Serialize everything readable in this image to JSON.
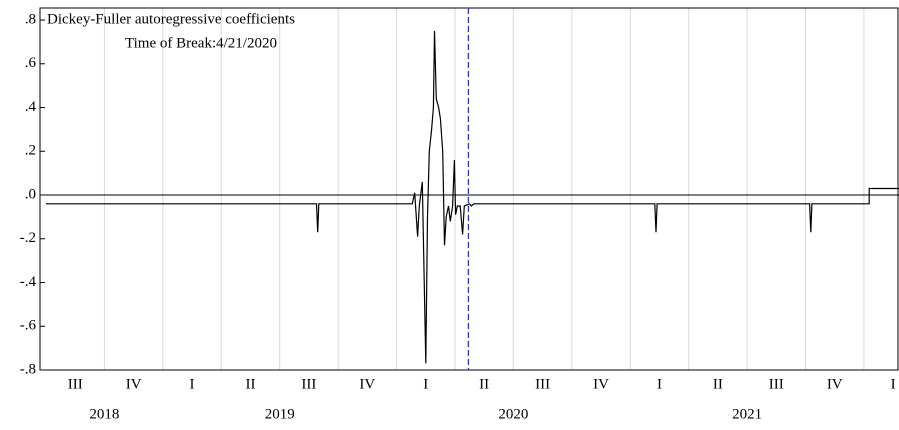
{
  "chart_data": {
    "type": "line",
    "annotations": [
      "Dickey-Fuller autoregressive coefficients",
      "Time of Break:4/21/2020"
    ],
    "xlim": [
      0,
      14.6
    ],
    "ylim": [
      -0.8,
      0.855
    ],
    "yticks": [
      {
        "value": 0.8,
        "label": ".8"
      },
      {
        "value": 0.6,
        "label": ".6"
      },
      {
        "value": 0.4,
        "label": ".4"
      },
      {
        "value": 0.2,
        "label": ".2"
      },
      {
        "value": 0,
        "label": ".0"
      },
      {
        "value": -0.2,
        "label": "-.2"
      },
      {
        "value": -0.4,
        "label": "-.4"
      },
      {
        "value": -0.6,
        "label": "-.6"
      },
      {
        "value": -0.8,
        "label": "-.8"
      }
    ],
    "xticks": [
      {
        "value": 0.5,
        "label": "III"
      },
      {
        "value": 1.5,
        "label": "IV"
      },
      {
        "value": 2.5,
        "label": "I"
      },
      {
        "value": 3.5,
        "label": "II"
      },
      {
        "value": 4.5,
        "label": "III"
      },
      {
        "value": 5.5,
        "label": "IV"
      },
      {
        "value": 6.5,
        "label": "I"
      },
      {
        "value": 7.5,
        "label": "II"
      },
      {
        "value": 8.5,
        "label": "III"
      },
      {
        "value": 9.5,
        "label": "IV"
      },
      {
        "value": 10.5,
        "label": "I"
      },
      {
        "value": 11.5,
        "label": "II"
      },
      {
        "value": 12.5,
        "label": "III"
      },
      {
        "value": 13.5,
        "label": "IV"
      },
      {
        "value": 14.5,
        "label": "I"
      }
    ],
    "year_ticks": [
      {
        "value": 1,
        "label": "2018"
      },
      {
        "value": 4,
        "label": "2019"
      },
      {
        "value": 8,
        "label": "2020"
      },
      {
        "value": 12,
        "label": "2021"
      }
    ],
    "reference_y": 0,
    "break_x": 7.23,
    "break_color": "#3333cc",
    "series": [
      {
        "color": "#000000",
        "x": [
          0,
          4.63,
          4.65,
          4.67,
          6.27,
          6.31,
          6.36,
          6.39,
          6.44,
          6.5,
          6.53,
          6.56,
          6.6,
          6.63,
          6.65,
          6.68,
          6.72,
          6.75,
          6.79,
          6.82,
          6.85,
          6.89,
          6.92,
          6.96,
          6.99,
          7.01,
          7.04,
          7.09,
          7.13,
          7.16,
          7.25,
          7.28,
          7.32,
          10.42,
          10.44,
          10.46,
          13.07,
          13.09,
          13.11,
          14.09,
          14.09,
          14.6
        ],
        "values": [
          -0.04,
          -0.04,
          -0.17,
          -0.04,
          -0.04,
          0.01,
          -0.19,
          -0.05,
          0.06,
          -0.77,
          -0.1,
          0.2,
          0.3,
          0.4,
          0.75,
          0.44,
          0.4,
          0.35,
          0.2,
          -0.23,
          -0.1,
          -0.05,
          -0.12,
          -0.05,
          0.16,
          -0.09,
          -0.05,
          -0.05,
          -0.18,
          -0.05,
          -0.04,
          -0.05,
          -0.04,
          -0.04,
          -0.17,
          -0.04,
          -0.04,
          -0.17,
          -0.04,
          -0.04,
          0.03,
          0.03
        ]
      }
    ]
  }
}
